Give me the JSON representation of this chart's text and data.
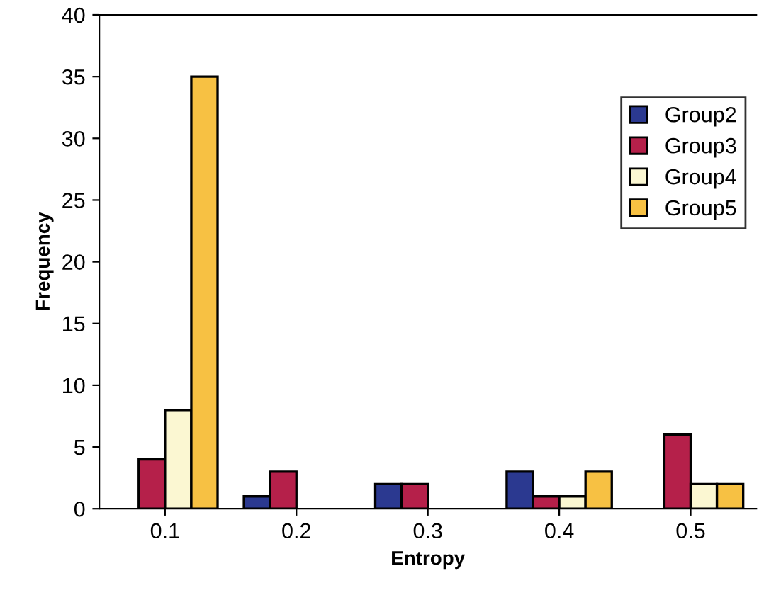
{
  "chart_data": {
    "type": "bar",
    "xlabel": "Entropy",
    "ylabel": "Frequency",
    "categories": [
      "0.1",
      "0.2",
      "0.3",
      "0.4",
      "0.5"
    ],
    "series": [
      {
        "name": "Group2",
        "color": "#2b3990",
        "values": [
          0,
          1,
          2,
          3,
          0
        ]
      },
      {
        "name": "Group3",
        "color": "#b5204a",
        "values": [
          4,
          3,
          2,
          1,
          6
        ]
      },
      {
        "name": "Group4",
        "color": "#fbf7d2",
        "values": [
          8,
          0,
          0,
          1,
          2
        ]
      },
      {
        "name": "Group5",
        "color": "#f7c143",
        "values": [
          35,
          0,
          0,
          3,
          2
        ]
      }
    ],
    "ylim": [
      0,
      40
    ],
    "yticks": [
      0,
      5,
      10,
      15,
      20,
      25,
      30,
      35,
      40
    ],
    "grid": false,
    "legend": "right"
  }
}
